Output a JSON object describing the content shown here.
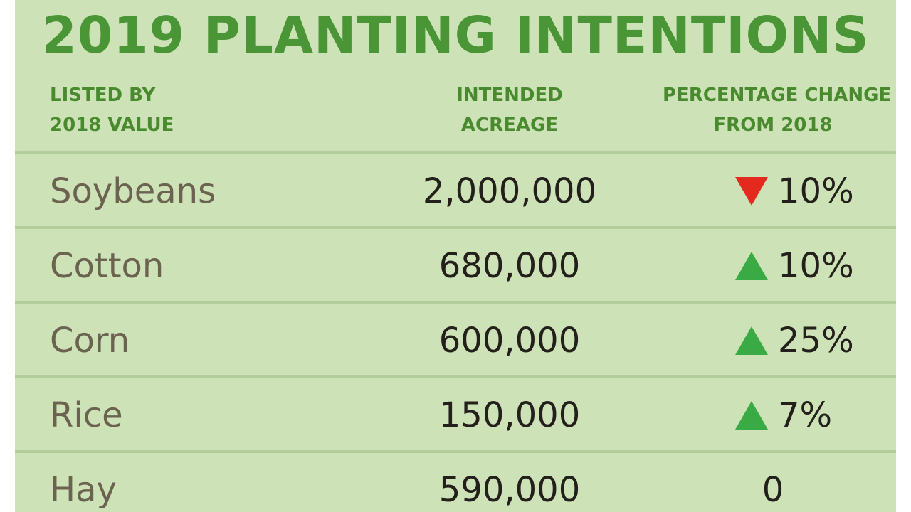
{
  "title": "2019 PLANTING INTENTIONS",
  "headers": {
    "crop": [
      "LISTED BY",
      "2018 VALUE"
    ],
    "acreage": [
      "INTENDED",
      "ACREAGE"
    ],
    "change": [
      "PERCENTAGE CHANGE",
      "FROM 2018"
    ]
  },
  "colors": {
    "background": "#cde3b7",
    "title": "#4a9535",
    "header": "#4a8a2e",
    "crop_text": "#6b6350",
    "up_arrow": "#3aaa44",
    "down_arrow": "#e42a1f"
  },
  "rows": [
    {
      "crop": "Soybeans",
      "acreage": "2,000,000",
      "direction": "down",
      "icon": "triangle-down-icon",
      "change": "10%"
    },
    {
      "crop": "Cotton",
      "acreage": "680,000",
      "direction": "up",
      "icon": "triangle-up-icon",
      "change": "10%"
    },
    {
      "crop": "Corn",
      "acreage": "600,000",
      "direction": "up",
      "icon": "triangle-up-icon",
      "change": "25%"
    },
    {
      "crop": "Rice",
      "acreage": "150,000",
      "direction": "up",
      "icon": "triangle-up-icon",
      "change": "7%"
    },
    {
      "crop": "Hay",
      "acreage": "590,000",
      "direction": "none",
      "icon": "",
      "change": "0"
    }
  ]
}
